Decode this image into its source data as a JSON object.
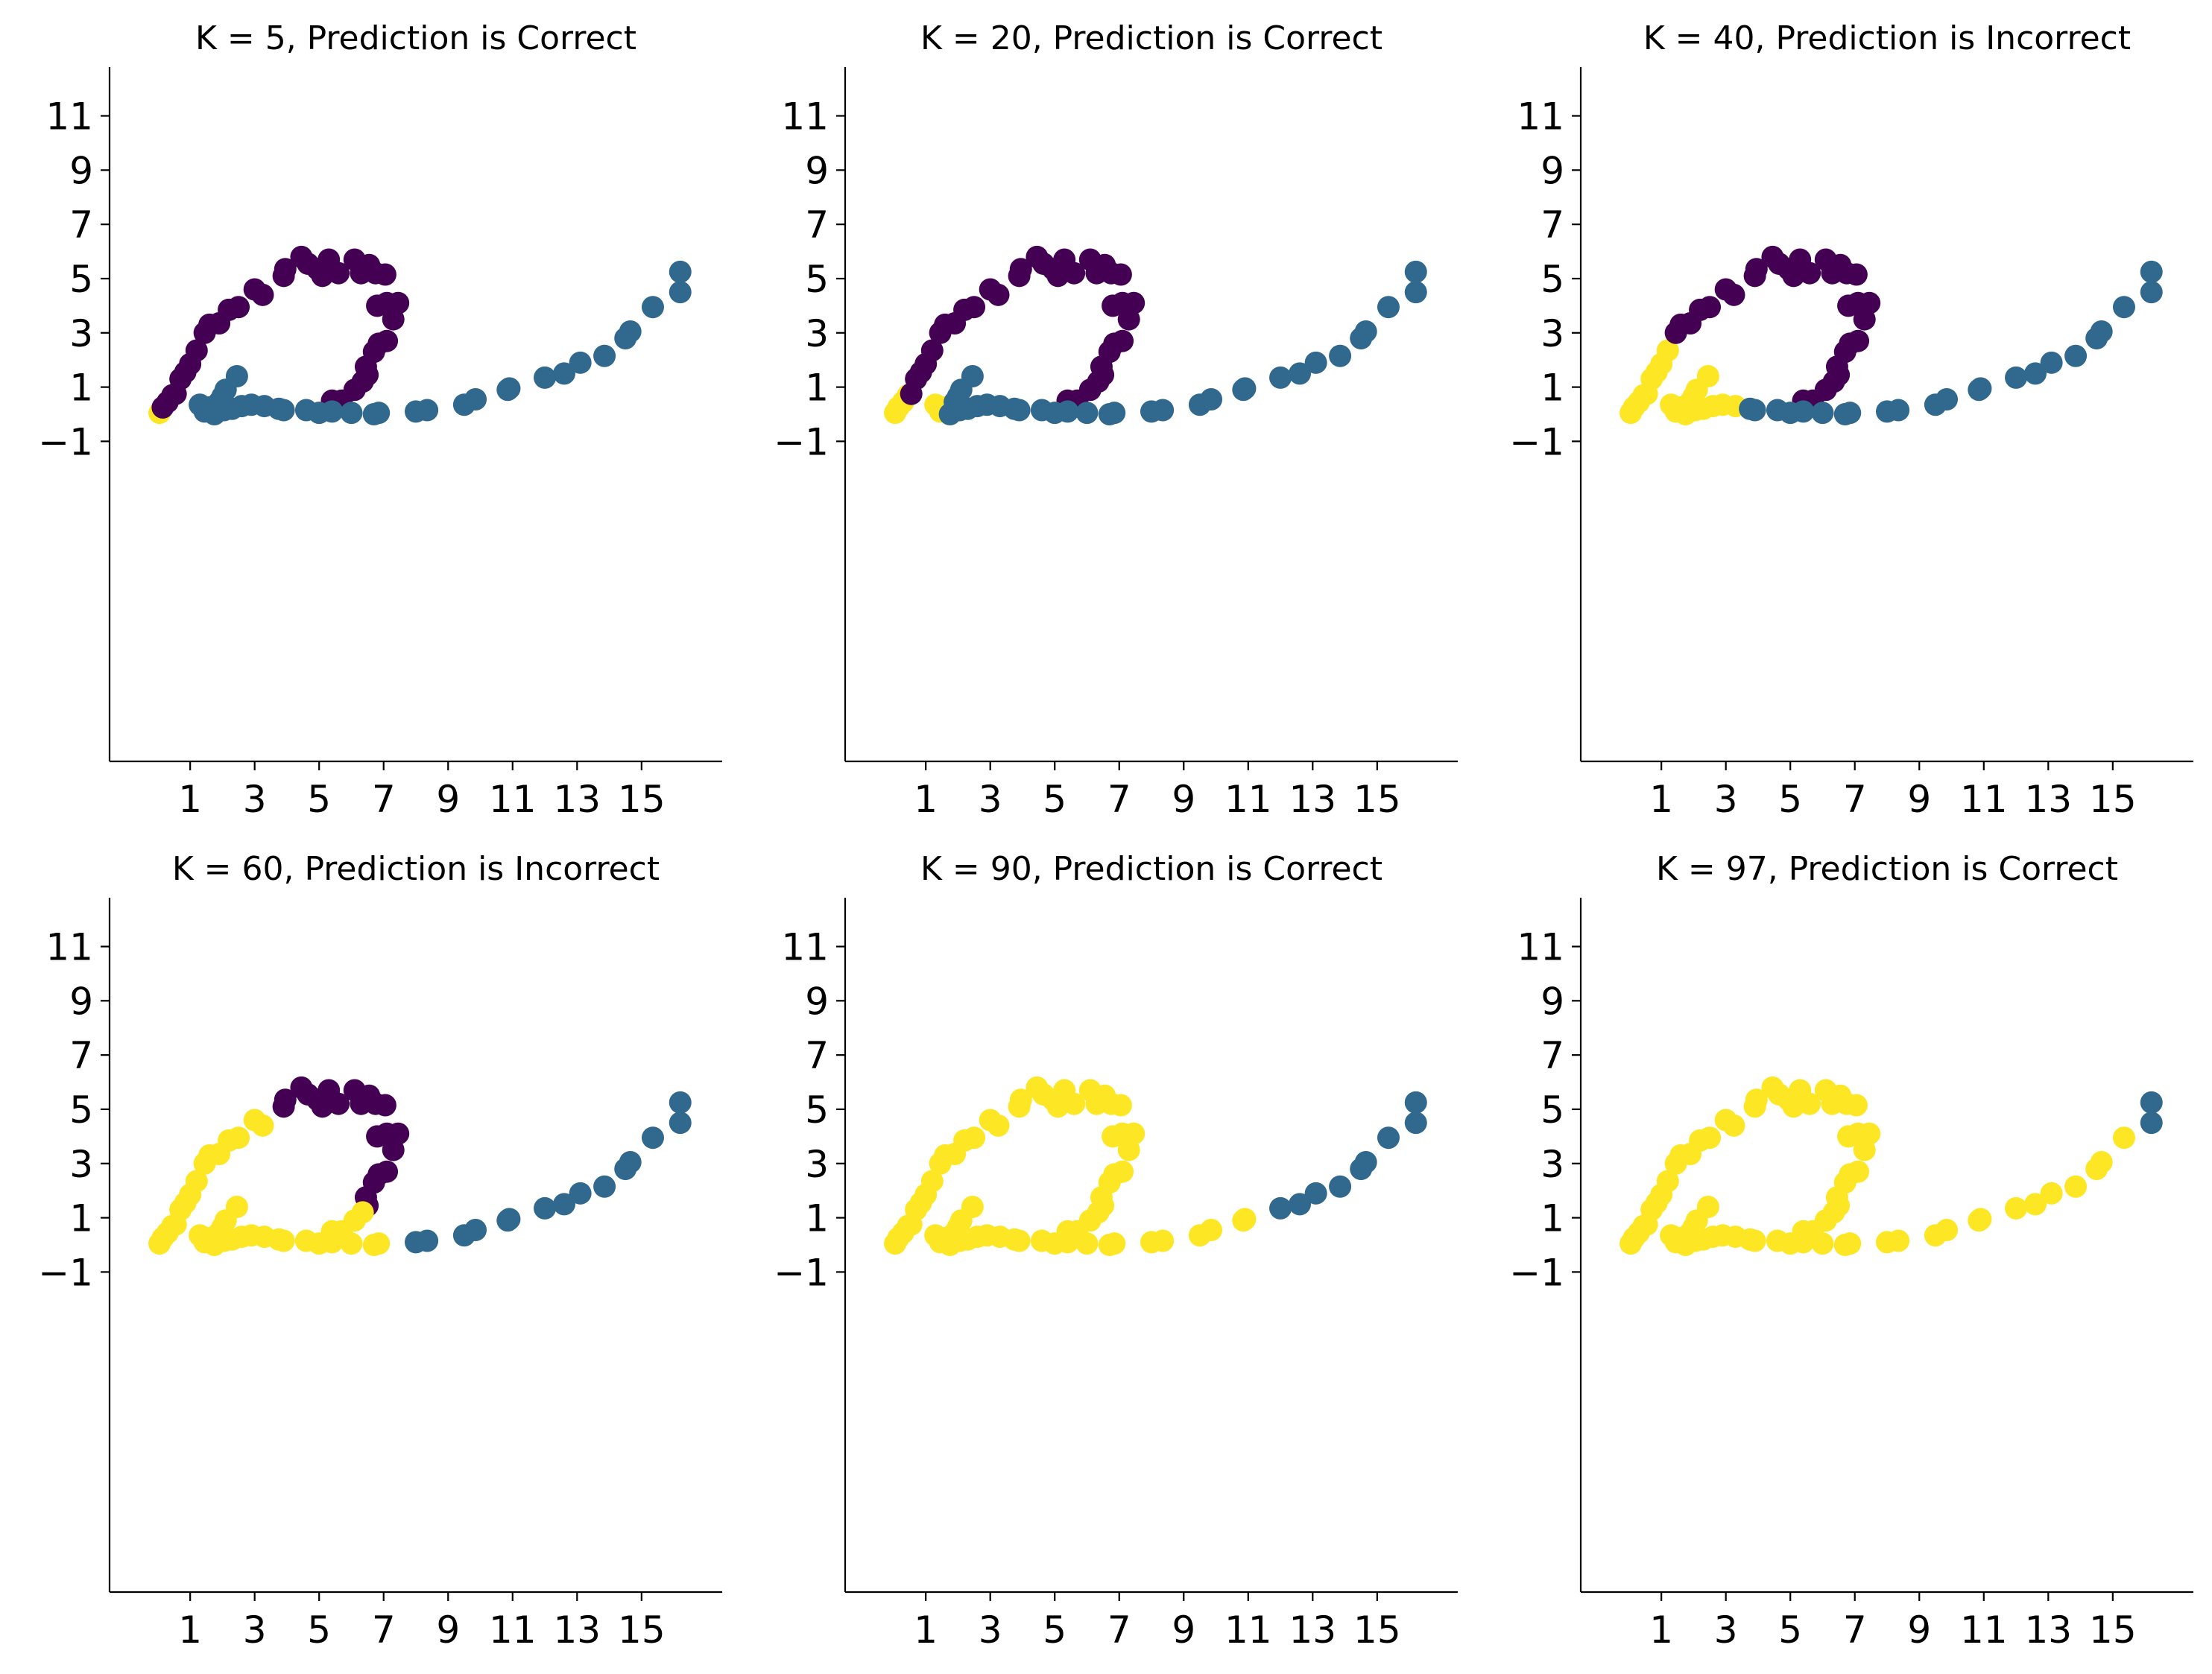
{
  "figure": {
    "palette": {
      "0": "#440154",
      "1": "#31688e",
      "2": "#fde725"
    }
  },
  "chart_data": [
    {
      "type": "scatter",
      "title": "K = 5, Prediction is Correct",
      "xlabel": "",
      "ylabel": "",
      "k": 5,
      "outcome": "Correct",
      "xlim": [
        -1.5,
        17.5
      ],
      "ylim": [
        -12.8,
        12.8
      ],
      "xticks": [
        1,
        3,
        5,
        7,
        9,
        11,
        13,
        15
      ],
      "yticks": [
        -1,
        1,
        3,
        5,
        7,
        9,
        11
      ],
      "xtick_labels": [
        "1",
        "3",
        "5",
        "7",
        "9",
        "11",
        "13",
        "15"
      ],
      "ytick_labels": [
        "−1",
        "1",
        "3",
        "5",
        "7",
        "9",
        "11"
      ],
      "grid": false
    },
    {
      "type": "scatter",
      "title": "K = 20, Prediction is Correct",
      "xlabel": "",
      "ylabel": "",
      "k": 20,
      "outcome": "Correct",
      "xlim": [
        -1.5,
        17.5
      ],
      "ylim": [
        -12.8,
        12.8
      ],
      "xticks": [
        1,
        3,
        5,
        7,
        9,
        11,
        13,
        15
      ],
      "yticks": [
        -1,
        1,
        3,
        5,
        7,
        9,
        11
      ],
      "xtick_labels": [
        "1",
        "3",
        "5",
        "7",
        "9",
        "11",
        "13",
        "15"
      ],
      "ytick_labels": [
        "−1",
        "1",
        "3",
        "5",
        "7",
        "9",
        "11"
      ],
      "grid": false
    },
    {
      "type": "scatter",
      "title": "K = 40, Prediction is Incorrect",
      "xlabel": "",
      "ylabel": "",
      "k": 40,
      "outcome": "Incorrect",
      "xlim": [
        -1.5,
        17.5
      ],
      "ylim": [
        -12.8,
        12.8
      ],
      "xticks": [
        1,
        3,
        5,
        7,
        9,
        11,
        13,
        15
      ],
      "yticks": [
        -1,
        1,
        3,
        5,
        7,
        9,
        11
      ],
      "xtick_labels": [
        "1",
        "3",
        "5",
        "7",
        "9",
        "11",
        "13",
        "15"
      ],
      "ytick_labels": [
        "−1",
        "1",
        "3",
        "5",
        "7",
        "9",
        "11"
      ],
      "grid": false
    },
    {
      "type": "scatter",
      "title": "K = 60, Prediction is Incorrect",
      "xlabel": "",
      "ylabel": "",
      "k": 60,
      "outcome": "Incorrect",
      "xlim": [
        -1.5,
        17.5
      ],
      "ylim": [
        -12.8,
        12.8
      ],
      "xticks": [
        1,
        3,
        5,
        7,
        9,
        11,
        13,
        15
      ],
      "yticks": [
        -1,
        1,
        3,
        5,
        7,
        9,
        11
      ],
      "xtick_labels": [
        "1",
        "3",
        "5",
        "7",
        "9",
        "11",
        "13",
        "15"
      ],
      "ytick_labels": [
        "−1",
        "1",
        "3",
        "5",
        "7",
        "9",
        "11"
      ],
      "grid": false
    },
    {
      "type": "scatter",
      "title": "K = 90, Prediction is Correct",
      "xlabel": "",
      "ylabel": "",
      "k": 90,
      "outcome": "Correct",
      "xlim": [
        -1.5,
        17.5
      ],
      "ylim": [
        -12.8,
        12.8
      ],
      "xticks": [
        1,
        3,
        5,
        7,
        9,
        11,
        13,
        15
      ],
      "yticks": [
        -1,
        1,
        3,
        5,
        7,
        9,
        11
      ],
      "xtick_labels": [
        "1",
        "3",
        "5",
        "7",
        "9",
        "11",
        "13",
        "15"
      ],
      "ytick_labels": [
        "−1",
        "1",
        "3",
        "5",
        "7",
        "9",
        "11"
      ],
      "grid": false
    },
    {
      "type": "scatter",
      "title": "K = 97, Prediction is Correct",
      "xlabel": "",
      "ylabel": "",
      "k": 97,
      "outcome": "Correct",
      "xlim": [
        -1.5,
        17.5
      ],
      "ylim": [
        -12.8,
        12.8
      ],
      "xticks": [
        1,
        3,
        5,
        7,
        9,
        11,
        13,
        15
      ],
      "yticks": [
        -1,
        1,
        3,
        5,
        7,
        9,
        11
      ],
      "xtick_labels": [
        "1",
        "3",
        "5",
        "7",
        "9",
        "11",
        "13",
        "15"
      ],
      "ytick_labels": [
        "−1",
        "1",
        "3",
        "5",
        "7",
        "9",
        "11"
      ],
      "grid": false
    }
  ],
  "points": [
    {
      "x": 0.05,
      "y": 0.05,
      "class": 1,
      "labels": [
        2,
        2,
        2,
        2,
        2,
        2
      ]
    },
    {
      "x": 0.15,
      "y": 0.25,
      "class": 0,
      "labels": [
        0,
        2,
        2,
        2,
        2,
        2
      ]
    },
    {
      "x": 0.3,
      "y": 0.45,
      "class": 0,
      "labels": [
        0,
        2,
        2,
        2,
        2,
        2
      ]
    },
    {
      "x": 0.45,
      "y": 0.7,
      "class": 0,
      "labels": [
        0,
        2,
        2,
        2,
        2,
        2
      ]
    },
    {
      "x": 0.55,
      "y": 0.75,
      "class": 0,
      "labels": [
        0,
        0,
        2,
        2,
        2,
        2
      ]
    },
    {
      "x": 0.7,
      "y": 1.3,
      "class": 0,
      "labels": [
        0,
        0,
        2,
        2,
        2,
        2
      ]
    },
    {
      "x": 0.85,
      "y": 1.55,
      "class": 0,
      "labels": [
        0,
        0,
        2,
        2,
        2,
        2
      ]
    },
    {
      "x": 1.0,
      "y": 1.85,
      "class": 0,
      "labels": [
        0,
        0,
        2,
        2,
        2,
        2
      ]
    },
    {
      "x": 1.2,
      "y": 2.35,
      "class": 0,
      "labels": [
        0,
        0,
        2,
        2,
        2,
        2
      ]
    },
    {
      "x": 1.45,
      "y": 3.0,
      "class": 0,
      "labels": [
        0,
        0,
        0,
        2,
        2,
        2
      ]
    },
    {
      "x": 1.6,
      "y": 3.3,
      "class": 0,
      "labels": [
        0,
        0,
        0,
        2,
        2,
        2
      ]
    },
    {
      "x": 1.9,
      "y": 3.35,
      "class": 0,
      "labels": [
        0,
        0,
        0,
        2,
        2,
        2
      ]
    },
    {
      "x": 2.2,
      "y": 3.85,
      "class": 0,
      "labels": [
        0,
        0,
        0,
        2,
        2,
        2
      ]
    },
    {
      "x": 2.5,
      "y": 3.95,
      "class": 0,
      "labels": [
        0,
        0,
        0,
        2,
        2,
        2
      ]
    },
    {
      "x": 3.0,
      "y": 4.6,
      "class": 0,
      "labels": [
        0,
        0,
        0,
        2,
        2,
        2
      ]
    },
    {
      "x": 3.25,
      "y": 4.4,
      "class": 0,
      "labels": [
        0,
        0,
        0,
        2,
        2,
        2
      ]
    },
    {
      "x": 3.9,
      "y": 5.1,
      "class": 0,
      "labels": [
        0,
        0,
        0,
        0,
        2,
        2
      ]
    },
    {
      "x": 3.95,
      "y": 5.35,
      "class": 0,
      "labels": [
        0,
        0,
        0,
        0,
        2,
        2
      ]
    },
    {
      "x": 4.45,
      "y": 5.8,
      "class": 0,
      "labels": [
        0,
        0,
        0,
        0,
        2,
        2
      ]
    },
    {
      "x": 4.65,
      "y": 5.55,
      "class": 0,
      "labels": [
        0,
        0,
        0,
        0,
        2,
        2
      ]
    },
    {
      "x": 4.95,
      "y": 5.35,
      "class": 0,
      "labels": [
        0,
        0,
        0,
        0,
        2,
        2
      ]
    },
    {
      "x": 5.1,
      "y": 5.1,
      "class": 0,
      "labels": [
        0,
        0,
        0,
        0,
        2,
        2
      ]
    },
    {
      "x": 5.3,
      "y": 5.7,
      "class": 0,
      "labels": [
        0,
        0,
        0,
        0,
        2,
        2
      ]
    },
    {
      "x": 5.6,
      "y": 5.2,
      "class": 0,
      "labels": [
        0,
        0,
        0,
        0,
        2,
        2
      ]
    },
    {
      "x": 6.1,
      "y": 5.7,
      "class": 0,
      "labels": [
        0,
        0,
        0,
        0,
        2,
        2
      ]
    },
    {
      "x": 6.3,
      "y": 5.2,
      "class": 0,
      "labels": [
        0,
        0,
        0,
        0,
        2,
        2
      ]
    },
    {
      "x": 6.55,
      "y": 5.5,
      "class": 0,
      "labels": [
        0,
        0,
        0,
        0,
        2,
        2
      ]
    },
    {
      "x": 6.75,
      "y": 5.2,
      "class": 0,
      "labels": [
        0,
        0,
        0,
        0,
        2,
        2
      ]
    },
    {
      "x": 7.05,
      "y": 5.15,
      "class": 0,
      "labels": [
        0,
        0,
        0,
        0,
        2,
        2
      ]
    },
    {
      "x": 6.8,
      "y": 4.0,
      "class": 0,
      "labels": [
        0,
        0,
        0,
        0,
        2,
        2
      ]
    },
    {
      "x": 7.1,
      "y": 4.1,
      "class": 0,
      "labels": [
        0,
        0,
        0,
        0,
        2,
        2
      ]
    },
    {
      "x": 7.45,
      "y": 4.1,
      "class": 0,
      "labels": [
        0,
        0,
        0,
        0,
        2,
        2
      ]
    },
    {
      "x": 7.3,
      "y": 3.5,
      "class": 0,
      "labels": [
        0,
        0,
        0,
        0,
        2,
        2
      ]
    },
    {
      "x": 6.85,
      "y": 2.6,
      "class": 0,
      "labels": [
        0,
        0,
        0,
        0,
        2,
        2
      ]
    },
    {
      "x": 7.1,
      "y": 2.7,
      "class": 0,
      "labels": [
        0,
        0,
        0,
        0,
        2,
        2
      ]
    },
    {
      "x": 6.7,
      "y": 2.3,
      "class": 0,
      "labels": [
        0,
        0,
        0,
        0,
        2,
        2
      ]
    },
    {
      "x": 6.45,
      "y": 1.75,
      "class": 0,
      "labels": [
        0,
        0,
        0,
        0,
        2,
        2
      ]
    },
    {
      "x": 6.5,
      "y": 1.45,
      "class": 0,
      "labels": [
        0,
        0,
        0,
        0,
        2,
        2
      ]
    },
    {
      "x": 6.35,
      "y": 1.2,
      "class": 0,
      "labels": [
        0,
        0,
        0,
        2,
        2,
        2
      ]
    },
    {
      "x": 6.1,
      "y": 0.9,
      "class": 0,
      "labels": [
        0,
        0,
        0,
        2,
        2,
        2
      ]
    },
    {
      "x": 5.4,
      "y": 0.5,
      "class": 0,
      "labels": [
        0,
        0,
        0,
        2,
        2,
        2
      ]
    },
    {
      "x": 5.7,
      "y": 0.5,
      "class": 0,
      "labels": [
        0,
        0,
        0,
        2,
        2,
        2
      ]
    },
    {
      "x": 1.3,
      "y": 0.35,
      "class": 1,
      "labels": [
        1,
        2,
        2,
        2,
        2,
        2
      ]
    },
    {
      "x": 1.45,
      "y": 0.1,
      "class": 1,
      "labels": [
        1,
        2,
        2,
        2,
        2,
        2
      ]
    },
    {
      "x": 1.6,
      "y": 0.25,
      "class": 1,
      "labels": [
        1,
        2,
        2,
        2,
        2,
        2
      ]
    },
    {
      "x": 1.75,
      "y": 0.0,
      "class": 1,
      "labels": [
        1,
        1,
        2,
        2,
        2,
        2
      ]
    },
    {
      "x": 1.9,
      "y": 0.45,
      "class": 1,
      "labels": [
        1,
        1,
        2,
        2,
        2,
        2
      ]
    },
    {
      "x": 2.0,
      "y": 0.65,
      "class": 1,
      "labels": [
        1,
        1,
        2,
        2,
        2,
        2
      ]
    },
    {
      "x": 2.1,
      "y": 0.9,
      "class": 1,
      "labels": [
        1,
        1,
        2,
        2,
        2,
        2
      ]
    },
    {
      "x": 2.05,
      "y": 0.15,
      "class": 1,
      "labels": [
        1,
        1,
        2,
        2,
        2,
        2
      ]
    },
    {
      "x": 2.3,
      "y": 0.2,
      "class": 1,
      "labels": [
        1,
        1,
        2,
        2,
        2,
        2
      ]
    },
    {
      "x": 2.45,
      "y": 1.4,
      "class": 1,
      "labels": [
        1,
        1,
        2,
        2,
        2,
        2
      ]
    },
    {
      "x": 2.6,
      "y": 0.3,
      "class": 1,
      "labels": [
        1,
        1,
        2,
        2,
        2,
        2
      ]
    },
    {
      "x": 2.9,
      "y": 0.35,
      "class": 1,
      "labels": [
        1,
        1,
        2,
        2,
        2,
        2
      ]
    },
    {
      "x": 3.3,
      "y": 0.3,
      "class": 1,
      "labels": [
        1,
        1,
        2,
        2,
        2,
        2
      ]
    },
    {
      "x": 3.75,
      "y": 0.2,
      "class": 1,
      "labels": [
        1,
        1,
        1,
        2,
        2,
        2
      ]
    },
    {
      "x": 3.9,
      "y": 0.15,
      "class": 1,
      "labels": [
        1,
        1,
        1,
        2,
        2,
        2
      ]
    },
    {
      "x": 4.6,
      "y": 0.15,
      "class": 1,
      "labels": [
        1,
        1,
        1,
        2,
        2,
        2
      ]
    },
    {
      "x": 5.0,
      "y": 0.05,
      "class": 1,
      "labels": [
        1,
        1,
        1,
        2,
        2,
        2
      ]
    },
    {
      "x": 5.4,
      "y": 0.1,
      "class": 1,
      "labels": [
        1,
        1,
        1,
        2,
        2,
        2
      ]
    },
    {
      "x": 6.0,
      "y": 0.05,
      "class": 1,
      "labels": [
        1,
        1,
        1,
        2,
        2,
        2
      ]
    },
    {
      "x": 6.7,
      "y": 0.0,
      "class": 1,
      "labels": [
        1,
        1,
        1,
        2,
        2,
        2
      ]
    },
    {
      "x": 6.85,
      "y": 0.05,
      "class": 1,
      "labels": [
        1,
        1,
        1,
        2,
        2,
        2
      ]
    },
    {
      "x": 8.0,
      "y": 0.1,
      "class": 1,
      "labels": [
        1,
        1,
        1,
        1,
        2,
        2
      ]
    },
    {
      "x": 8.35,
      "y": 0.15,
      "class": 1,
      "labels": [
        1,
        1,
        1,
        1,
        2,
        2
      ]
    },
    {
      "x": 9.5,
      "y": 0.35,
      "class": 1,
      "labels": [
        1,
        1,
        1,
        1,
        2,
        2
      ]
    },
    {
      "x": 9.85,
      "y": 0.55,
      "class": 1,
      "labels": [
        1,
        1,
        1,
        1,
        2,
        2
      ]
    },
    {
      "x": 10.85,
      "y": 0.9,
      "class": 1,
      "labels": [
        1,
        1,
        1,
        1,
        2,
        2
      ]
    },
    {
      "x": 10.9,
      "y": 0.95,
      "class": 1,
      "labels": [
        1,
        1,
        1,
        1,
        2,
        2
      ]
    },
    {
      "x": 12.0,
      "y": 1.35,
      "class": 1,
      "labels": [
        1,
        1,
        1,
        1,
        1,
        2
      ]
    },
    {
      "x": 12.6,
      "y": 1.5,
      "class": 1,
      "labels": [
        1,
        1,
        1,
        1,
        1,
        2
      ]
    },
    {
      "x": 13.1,
      "y": 1.9,
      "class": 1,
      "labels": [
        1,
        1,
        1,
        1,
        1,
        2
      ]
    },
    {
      "x": 13.85,
      "y": 2.15,
      "class": 1,
      "labels": [
        1,
        1,
        1,
        1,
        1,
        2
      ]
    },
    {
      "x": 14.5,
      "y": 2.8,
      "class": 1,
      "labels": [
        1,
        1,
        1,
        1,
        1,
        2
      ]
    },
    {
      "x": 14.65,
      "y": 3.05,
      "class": 1,
      "labels": [
        1,
        1,
        1,
        1,
        1,
        2
      ]
    },
    {
      "x": 15.35,
      "y": 3.95,
      "class": 1,
      "labels": [
        1,
        1,
        1,
        1,
        1,
        2
      ]
    },
    {
      "x": 16.2,
      "y": 4.5,
      "class": 1,
      "labels": [
        1,
        1,
        1,
        1,
        1,
        1
      ]
    },
    {
      "x": 16.2,
      "y": 5.25,
      "class": 1,
      "labels": [
        1,
        1,
        1,
        1,
        1,
        1
      ]
    }
  ]
}
